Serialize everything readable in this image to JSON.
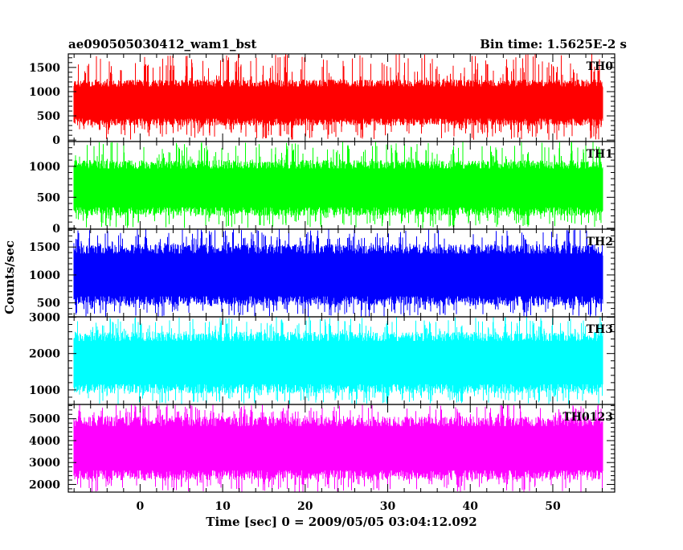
{
  "header": {
    "title": "ae090505030412_wam1_bst",
    "bin_time": "Bin time: 1.5625E-2 s"
  },
  "chart_data": {
    "type": "line",
    "title": "ae090505030412_wam1_bst",
    "subtitle": "Bin time: 1.5625E-2 s",
    "xlabel": "Time [sec] 0 = 2009/05/05 03:04:12.092",
    "ylabel": "Counts/sec",
    "xlim": [
      -8.7,
      57.5
    ],
    "x_ticks": [
      0,
      10,
      20,
      30,
      40,
      50
    ],
    "x_minor_step": 2,
    "x_data_range": [
      -8.0,
      56.0
    ],
    "bin_time": 0.015625,
    "grid": false,
    "legend": "none",
    "panels": [
      {
        "name": "TH0",
        "color": "#ff0000",
        "ylim": [
          -30,
          1780
        ],
        "y_ticks": [
          0,
          500,
          1000,
          1500
        ],
        "y_minor_step": 100,
        "value_range": [
          0,
          1780
        ],
        "typical_range": [
          300,
          1250
        ]
      },
      {
        "name": "TH1",
        "color": "#00ff00",
        "ylim": [
          -15,
          1400
        ],
        "y_ticks": [
          0,
          500,
          1000
        ],
        "y_minor_step": 100,
        "value_range": [
          0,
          1400
        ],
        "typical_range": [
          200,
          1100
        ]
      },
      {
        "name": "TH2",
        "color": "#0000ff",
        "ylim": [
          250,
          1820
        ],
        "y_ticks": [
          500,
          1000,
          1500
        ],
        "y_minor_step": 100,
        "value_range": [
          250,
          1820
        ],
        "typical_range": [
          450,
          1550
        ]
      },
      {
        "name": "TH3",
        "color": "#00ffff",
        "ylim": [
          600,
          3010
        ],
        "y_ticks": [
          1000,
          2000,
          3000
        ],
        "y_minor_step": 200,
        "value_range": [
          600,
          3010
        ],
        "typical_range": [
          900,
          2600
        ]
      },
      {
        "name": "TH0123",
        "color": "#ff00ff",
        "ylim": [
          1650,
          5650
        ],
        "y_ticks": [
          2000,
          3000,
          4000,
          5000
        ],
        "y_minor_step": 200,
        "value_range": [
          1650,
          5650
        ],
        "typical_range": [
          2200,
          5100
        ]
      }
    ]
  }
}
